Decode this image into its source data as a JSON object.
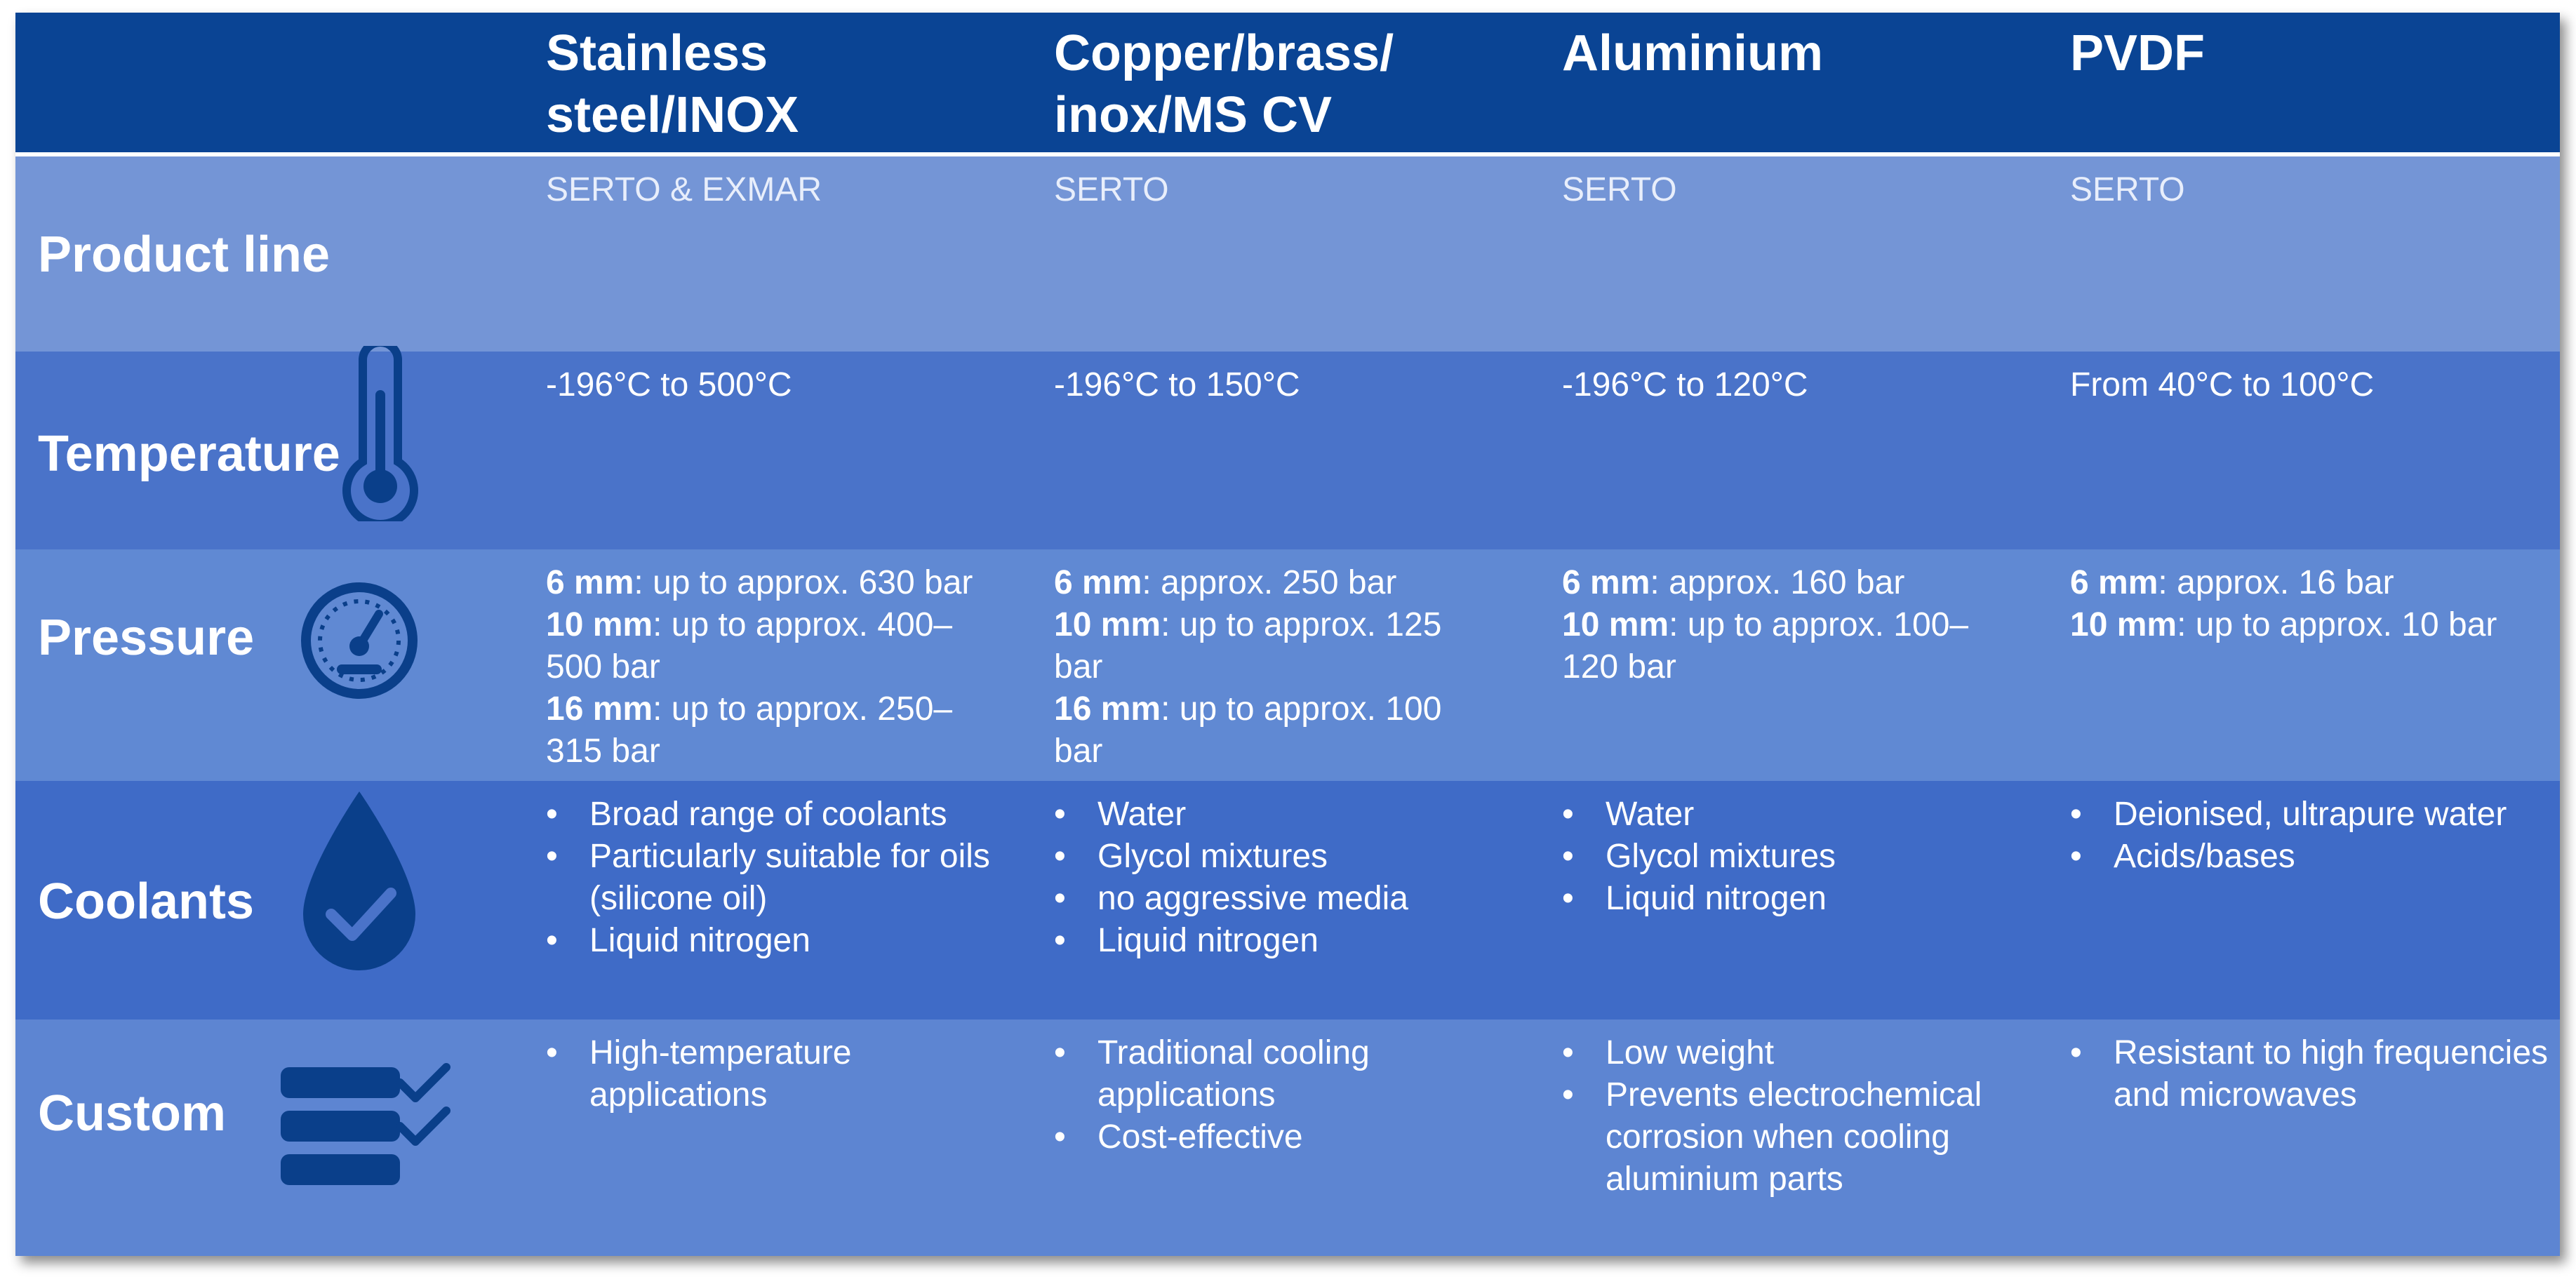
{
  "columns": [
    {
      "title_line1": "Stainless",
      "title_line2": "steel/INOX"
    },
    {
      "title_line1": "Copper/brass/",
      "title_line2": "inox/MS CV"
    },
    {
      "title_line1": "Aluminium",
      "title_line2": ""
    },
    {
      "title_line1": "PVDF",
      "title_line2": ""
    }
  ],
  "rows": {
    "product_line": {
      "label": "Product line",
      "cells": [
        "SERTO & EXMAR",
        "SERTO",
        "SERTO",
        "SERTO"
      ]
    },
    "temperature": {
      "label": "Temperature",
      "icon": "thermometer-icon",
      "cells": [
        "-196°C to 500°C",
        "-196°C to 150°C",
        "-196°C to 120°C",
        "From 40°C to 100°C"
      ]
    },
    "pressure": {
      "label": "Pressure",
      "icon": "gauge-icon",
      "cells": [
        {
          "l1_b": "6 mm",
          "l1": ": up to approx. 630 bar",
          "l2_b": "10 mm",
          "l2": ": up to approx. 400–",
          "l2c": "500 bar",
          "l3_b": "16 mm",
          "l3": ": up to approx. 250–",
          "l3c": "315 bar"
        },
        {
          "l1_b": "6 mm",
          "l1": ": approx. 250 bar",
          "l2_b": "10 mm",
          "l2": ": up to approx. 125",
          "l2c": "bar",
          "l3_b": "16 mm",
          "l3": ": up to approx. 100",
          "l3c": "bar"
        },
        {
          "l1_b": "6 mm",
          "l1": ": approx. 160 bar",
          "l2_b": "10 mm",
          "l2": ": up to approx. 100–",
          "l2c": "120 bar"
        },
        {
          "l1_b": "6 mm",
          "l1": ": approx. 16 bar",
          "l2_b": "10 mm",
          "l2": ": up to approx. 10 bar"
        }
      ]
    },
    "coolants": {
      "label": "Coolants",
      "icon": "water-drop-check-icon",
      "cells": [
        [
          "Broad range of coolants",
          "Particularly suitable for oils (silicone oil)",
          "Liquid nitrogen"
        ],
        [
          "Water",
          "Glycol mixtures",
          "no aggressive media",
          "Liquid nitrogen"
        ],
        [
          "Water",
          "Glycol mixtures",
          "Liquid nitrogen"
        ],
        [
          "Deionised, ultrapure water",
          "Acids/bases"
        ]
      ]
    },
    "custom": {
      "label": "Custom",
      "icon": "checklist-icon",
      "cells": [
        [
          "High-temperature applications"
        ],
        [
          "Traditional cooling applications",
          "Cost-effective"
        ],
        [
          "Low weight",
          "Prevents electrochemical corrosion when cooling aluminium parts"
        ],
        [
          "Resistant to high frequencies and microwaves"
        ]
      ]
    }
  },
  "colors": {
    "header": "#0a4494",
    "row_light": "#7495d6",
    "row_mid": "#4a73c9",
    "row_pressure": "#6089d3",
    "row_coolants": "#3f6bc7",
    "row_custom": "#5d85d2",
    "icon": "#0a3f8a"
  }
}
